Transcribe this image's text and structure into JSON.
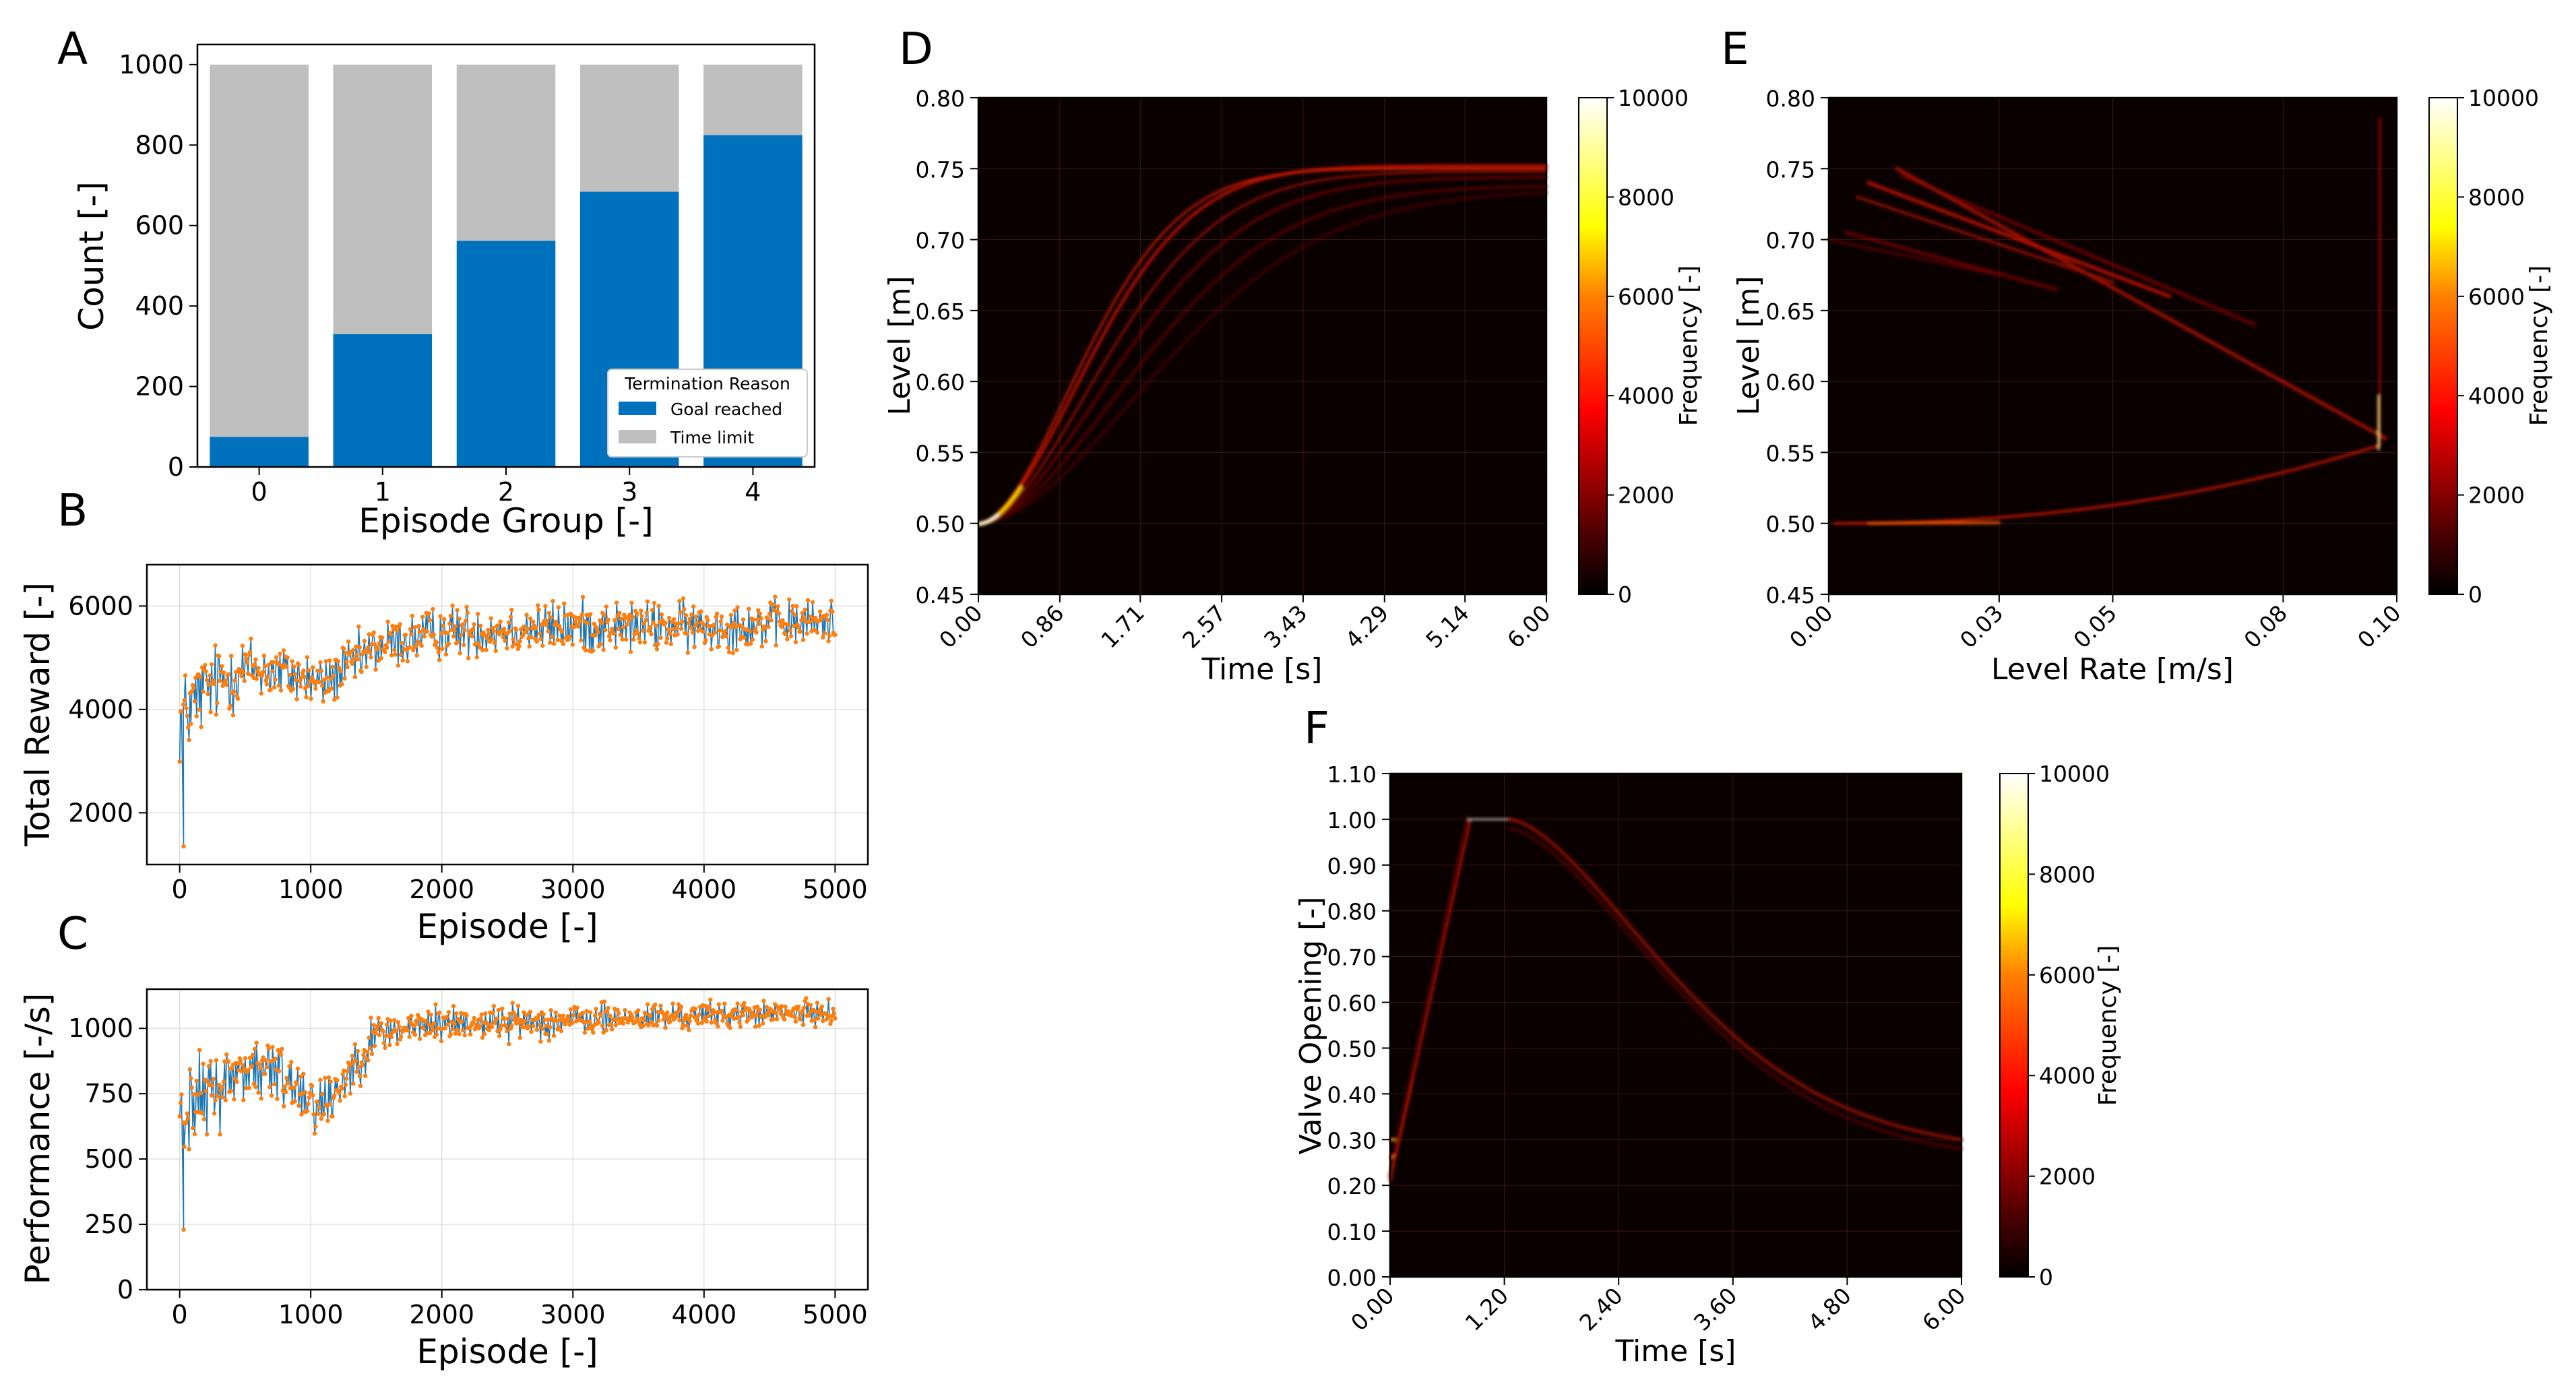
{
  "colors": {
    "goal": "#0072bd",
    "time_limit": "#bfbfbf",
    "series_line": "#1f77b4",
    "series_marker": "#ff7f0e"
  },
  "chart_data": [
    {
      "panel": "A",
      "type": "bar",
      "stacked": true,
      "categories": [
        "0",
        "1",
        "2",
        "3",
        "4"
      ],
      "series": [
        {
          "name": "Goal reached",
          "values": [
            75,
            330,
            562,
            684,
            825
          ]
        },
        {
          "name": "Time limit",
          "values": [
            925,
            670,
            438,
            316,
            175
          ]
        }
      ],
      "xlabel": "Episode Group [-]",
      "ylabel": "Count [-]",
      "ylim": [
        0,
        1050
      ],
      "yticks": [
        "0",
        "200",
        "400",
        "600",
        "800",
        "1000"
      ],
      "legend": {
        "title": "Termination Reason",
        "placement": "lower-right",
        "entries": [
          "Goal reached",
          "Time limit"
        ]
      }
    },
    {
      "panel": "B",
      "type": "line",
      "xlabel": "Episode [-]",
      "ylabel": "Total Reward [-]",
      "xlim": [
        -250,
        5250
      ],
      "ylim": [
        1000,
        6800
      ],
      "xticks": [
        "0",
        "1000",
        "2000",
        "3000",
        "4000",
        "5000"
      ],
      "yticks": [
        "2000",
        "4000",
        "6000"
      ],
      "trend": {
        "x": [
          0,
          200,
          500,
          800,
          1100,
          1500,
          2000,
          3000,
          4000,
          5000
        ],
        "y": [
          3800,
          4400,
          4800,
          4700,
          4500,
          5200,
          5500,
          5600,
          5600,
          5700
        ]
      },
      "spread": [
        800,
        700,
        600,
        500,
        450,
        450,
        450,
        450,
        420,
        400
      ],
      "min_point": {
        "x": 30,
        "y": 1350
      }
    },
    {
      "panel": "C",
      "type": "line",
      "xlabel": "Episode [-]",
      "ylabel": "Performance [-/s]",
      "xlim": [
        -250,
        5250
      ],
      "ylim": [
        0,
        1150
      ],
      "xticks": [
        "0",
        "1000",
        "2000",
        "3000",
        "4000",
        "5000"
      ],
      "yticks": [
        "0",
        "250",
        "500",
        "750",
        "1000"
      ],
      "trend": {
        "x": [
          0,
          200,
          500,
          800,
          1100,
          1500,
          2000,
          3000,
          4000,
          5000
        ],
        "y": [
          680,
          740,
          850,
          820,
          700,
          980,
          1020,
          1030,
          1050,
          1060
        ]
      },
      "spread": [
        150,
        140,
        120,
        120,
        110,
        70,
        60,
        55,
        45,
        40
      ],
      "min_point": {
        "x": 30,
        "y": 230
      }
    },
    {
      "panel": "D",
      "type": "heatmap",
      "xlabel": "Time [s]",
      "ylabel": "Level [m]",
      "colorbar_label": "Frequency [-]",
      "colorbar_ticks": [
        "0",
        "2000",
        "4000",
        "6000",
        "8000",
        "10000"
      ],
      "colorbar_range": [
        0,
        10000
      ],
      "xlim": [
        0,
        6
      ],
      "ylim": [
        0.45,
        0.8
      ],
      "xticks": [
        "0.00",
        "0.86",
        "1.71",
        "2.57",
        "3.43",
        "4.29",
        "5.14",
        "6.00"
      ],
      "yticks": [
        "0.45",
        "0.50",
        "0.55",
        "0.60",
        "0.65",
        "0.70",
        "0.75",
        "0.80"
      ]
    },
    {
      "panel": "E",
      "type": "heatmap",
      "xlabel": "Level Rate [m/s]",
      "ylabel": "Level [m]",
      "colorbar_label": "Frequency [-]",
      "colorbar_ticks": [
        "0",
        "2000",
        "4000",
        "6000",
        "8000",
        "10000"
      ],
      "colorbar_range": [
        0,
        10000
      ],
      "xlim": [
        0,
        0.1
      ],
      "ylim": [
        0.45,
        0.8
      ],
      "xticks": [
        "0.00",
        "0.03",
        "0.05",
        "0.08",
        "0.10"
      ],
      "yticks": [
        "0.45",
        "0.50",
        "0.55",
        "0.60",
        "0.65",
        "0.70",
        "0.75",
        "0.80"
      ]
    },
    {
      "panel": "F",
      "type": "heatmap",
      "xlabel": "Time [s]",
      "ylabel": "Valve Opening [-]",
      "colorbar_label": "Frequency [-]",
      "colorbar_ticks": [
        "0",
        "2000",
        "4000",
        "6000",
        "8000",
        "10000"
      ],
      "colorbar_range": [
        0,
        10000
      ],
      "xlim": [
        0,
        6
      ],
      "ylim": [
        0,
        1.1
      ],
      "xticks": [
        "0.00",
        "1.20",
        "2.40",
        "3.60",
        "4.80",
        "6.00"
      ],
      "yticks": [
        "0.00",
        "0.10",
        "0.20",
        "0.30",
        "0.40",
        "0.50",
        "0.60",
        "0.70",
        "0.80",
        "0.90",
        "1.00",
        "1.10"
      ]
    }
  ]
}
